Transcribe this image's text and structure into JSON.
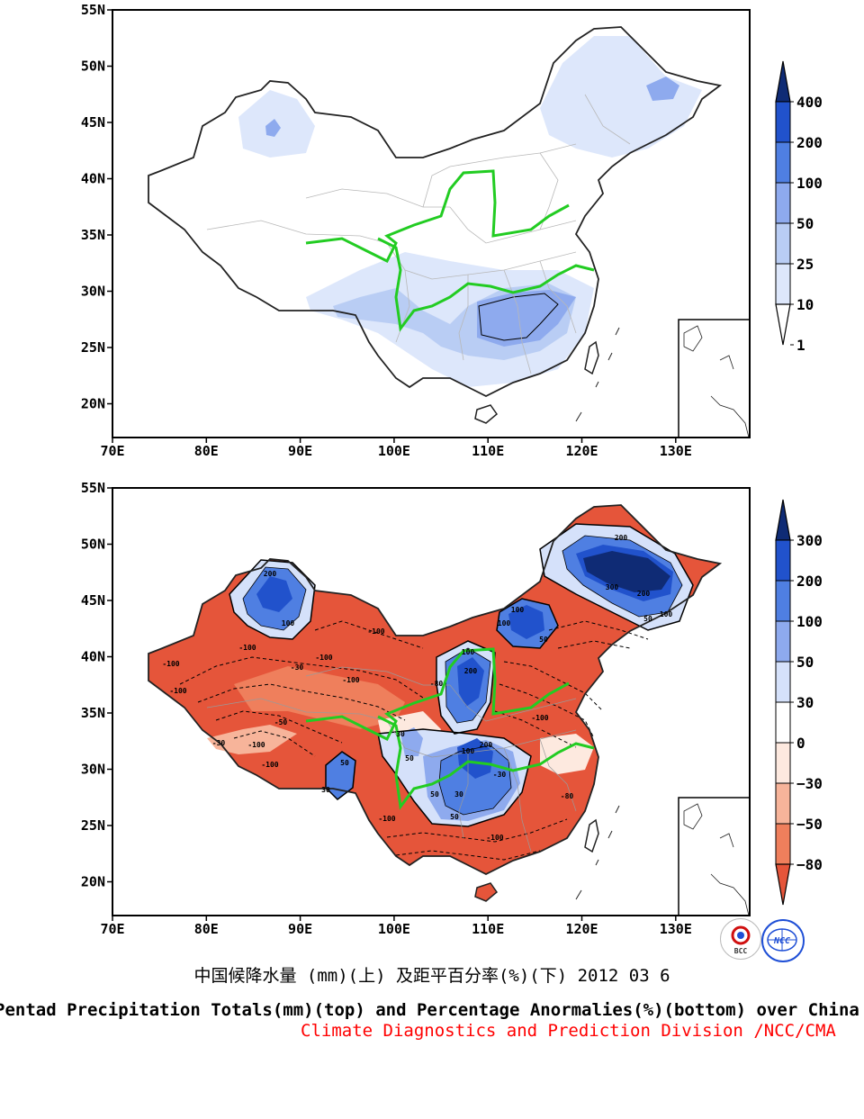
{
  "top_map": {
    "lat_labels": [
      "55N",
      "50N",
      "45N",
      "40N",
      "35N",
      "30N",
      "25N",
      "20N"
    ],
    "lon_labels": [
      "70E",
      "80E",
      "90E",
      "100E",
      "110E",
      "120E",
      "130E"
    ],
    "colorbar_labels": [
      "400",
      "200",
      "100",
      "50",
      "25",
      "10",
      "1"
    ],
    "colors": [
      "#ffffff",
      "#dde7fb",
      "#b9cdf4",
      "#8eaaee",
      "#4f7fe2",
      "#2152cc",
      "#0f2b75"
    ]
  },
  "bottom_map": {
    "lat_labels": [
      "55N",
      "50N",
      "45N",
      "40N",
      "35N",
      "30N",
      "25N",
      "20N"
    ],
    "lon_labels": [
      "70E",
      "80E",
      "90E",
      "100E",
      "110E",
      "120E",
      "130E"
    ],
    "colorbar_labels": [
      "300",
      "200",
      "100",
      "50",
      "30",
      "0",
      "−30",
      "−50",
      "−80"
    ],
    "colors_positive": [
      "#0f2b75",
      "#2152cc",
      "#4f7fe2",
      "#8eaaee",
      "#d5e1fa",
      "#ffffff"
    ],
    "colors_negative": [
      "#fde9df",
      "#f7b49a",
      "#ef7f5c",
      "#e5553a"
    ],
    "contour_labels": [
      "-100",
      "-80",
      "-50",
      "-30",
      "30",
      "50",
      "100",
      "200",
      "300"
    ]
  },
  "captions": {
    "chinese": "中国候降水量 (mm)(上) 及距平百分率(%)(下) 2012 03 6",
    "english": "Pentad Precipitation Totals(mm)(top) and Percentage Anormalies(%)(bottom) over China",
    "division": "Climate Diagnostics and Prediction Division /NCC/CMA"
  },
  "logos": {
    "left": "BCC",
    "right": "NCC"
  }
}
